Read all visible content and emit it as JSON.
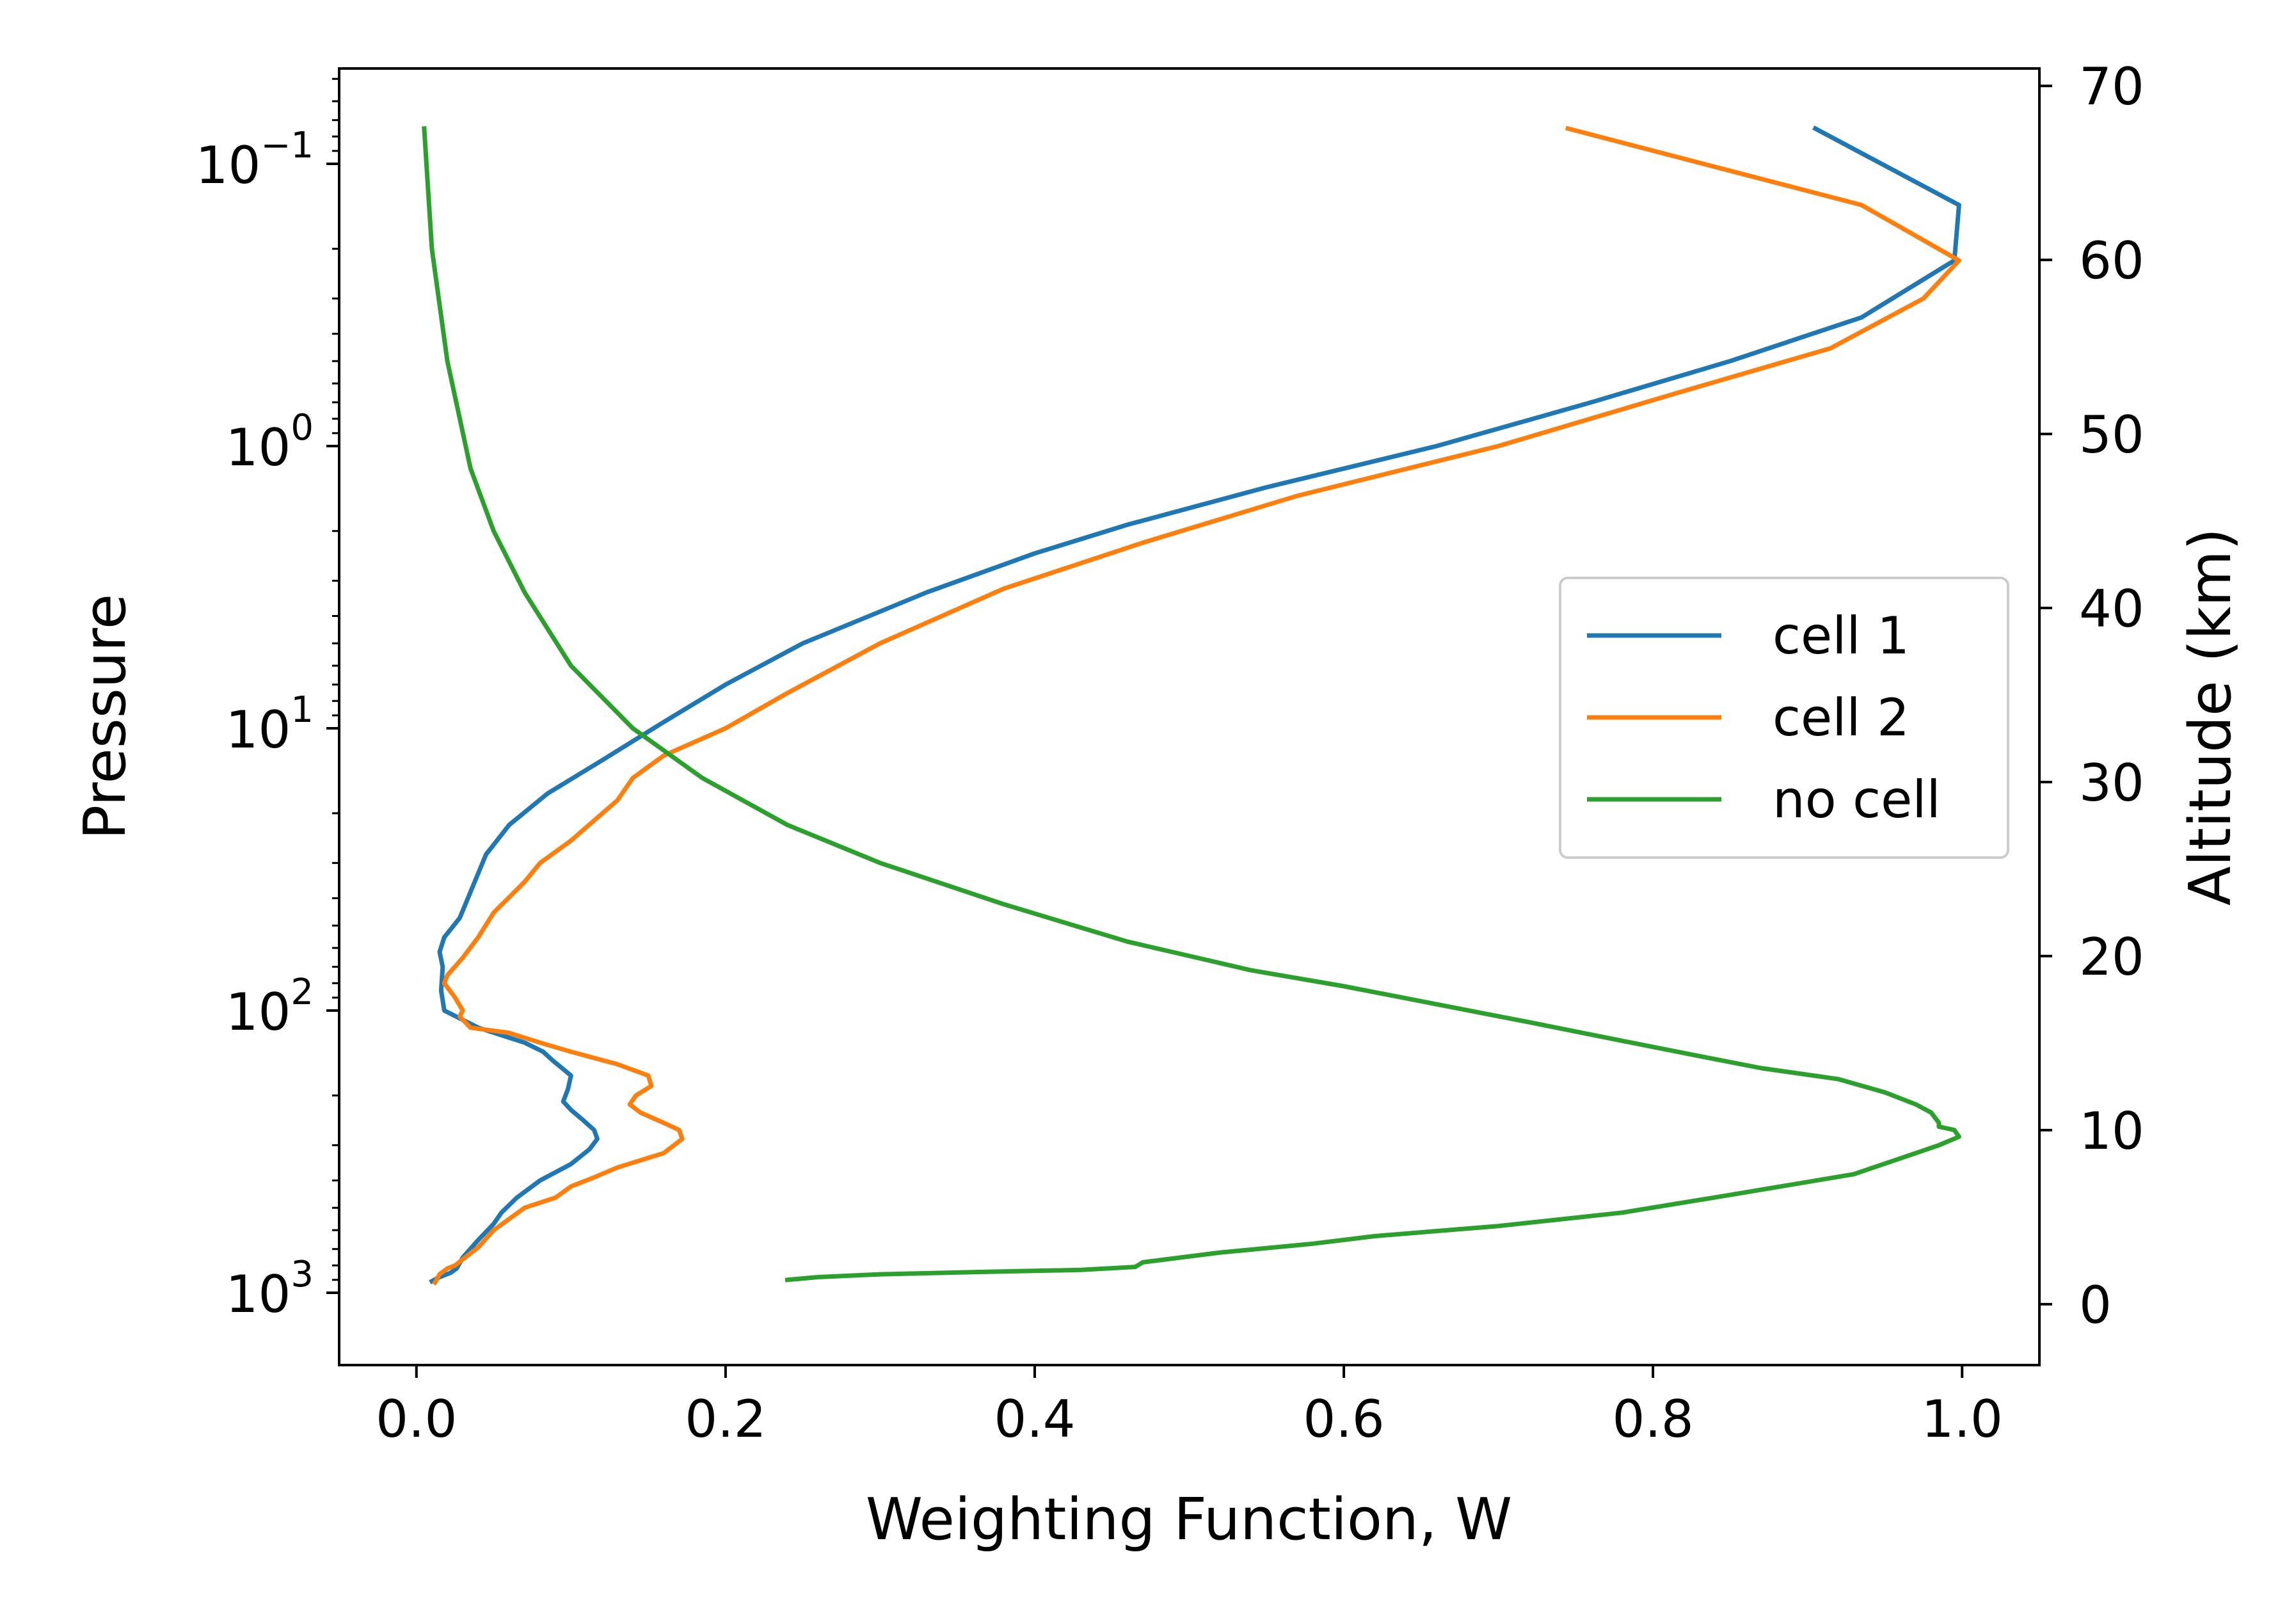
{
  "chart_data": {
    "type": "line",
    "xlabel": "Weighting Function, W",
    "ylabel_left": "Pressure",
    "ylabel_right": "Altitude (km)",
    "xlim": [
      -0.05,
      1.05
    ],
    "xticks": [
      {
        "value": 0.0,
        "label": "0.0"
      },
      {
        "value": 0.2,
        "label": "0.2"
      },
      {
        "value": 0.4,
        "label": "0.4"
      },
      {
        "value": 0.6,
        "label": "0.6"
      },
      {
        "value": 0.8,
        "label": "0.8"
      },
      {
        "value": 1.0,
        "label": "1.0"
      }
    ],
    "y_left_scale": "log",
    "y_left_inverted": true,
    "y_left_ticks": [
      {
        "value": 0.1,
        "base": "10",
        "exp": "−1"
      },
      {
        "value": 1,
        "base": "10",
        "exp": "0"
      },
      {
        "value": 10,
        "base": "10",
        "exp": "1"
      },
      {
        "value": 100,
        "base": "10",
        "exp": "2"
      },
      {
        "value": 1000,
        "base": "10",
        "exp": "3"
      }
    ],
    "y_right_lim": [
      -3.5,
      71
    ],
    "y_right_ticks": [
      {
        "value": 0,
        "label": "0"
      },
      {
        "value": 10,
        "label": "10"
      },
      {
        "value": 20,
        "label": "20"
      },
      {
        "value": 30,
        "label": "30"
      },
      {
        "value": 40,
        "label": "40"
      },
      {
        "value": 50,
        "label": "50"
      },
      {
        "value": 60,
        "label": "60"
      },
      {
        "value": 70,
        "label": "70"
      }
    ],
    "grid": false,
    "legend_position": "center-right",
    "series": [
      {
        "name": "cell 1",
        "color": "#1f77b4",
        "points": [
          [
            0.905,
            0.075
          ],
          [
            0.998,
            0.14
          ],
          [
            0.995,
            0.22
          ],
          [
            0.935,
            0.35
          ],
          [
            0.85,
            0.5
          ],
          [
            0.76,
            0.7
          ],
          [
            0.66,
            1.0
          ],
          [
            0.55,
            1.4
          ],
          [
            0.46,
            1.9
          ],
          [
            0.4,
            2.4
          ],
          [
            0.33,
            3.3
          ],
          [
            0.25,
            5.0
          ],
          [
            0.2,
            7.0
          ],
          [
            0.16,
            9.5
          ],
          [
            0.12,
            13.0
          ],
          [
            0.085,
            17.0
          ],
          [
            0.06,
            22.0
          ],
          [
            0.045,
            28.0
          ],
          [
            0.035,
            38.0
          ],
          [
            0.028,
            47.0
          ],
          [
            0.018,
            55.0
          ],
          [
            0.015,
            62.0
          ],
          [
            0.017,
            70.0
          ],
          [
            0.016,
            85.0
          ],
          [
            0.018,
            100.0
          ],
          [
            0.04,
            115.0
          ],
          [
            0.07,
            130.0
          ],
          [
            0.082,
            140.0
          ],
          [
            0.088,
            150.0
          ],
          [
            0.1,
            170.0
          ],
          [
            0.098,
            190.0
          ],
          [
            0.095,
            210.0
          ],
          [
            0.1,
            225.0
          ],
          [
            0.108,
            245.0
          ],
          [
            0.115,
            265.0
          ],
          [
            0.117,
            285.0
          ],
          [
            0.112,
            310.0
          ],
          [
            0.1,
            350.0
          ],
          [
            0.08,
            400.0
          ],
          [
            0.065,
            460.0
          ],
          [
            0.055,
            520.0
          ],
          [
            0.05,
            570.0
          ],
          [
            0.04,
            650.0
          ],
          [
            0.03,
            750.0
          ],
          [
            0.026,
            820.0
          ],
          [
            0.022,
            850.0
          ],
          [
            0.015,
            880.0
          ],
          [
            0.01,
            910.0
          ]
        ]
      },
      {
        "name": "cell 2",
        "color": "#ff7f0e",
        "points": [
          [
            0.745,
            0.075
          ],
          [
            0.935,
            0.14
          ],
          [
            0.998,
            0.22
          ],
          [
            0.975,
            0.3
          ],
          [
            0.915,
            0.45
          ],
          [
            0.815,
            0.65
          ],
          [
            0.7,
            1.0
          ],
          [
            0.57,
            1.5
          ],
          [
            0.47,
            2.2
          ],
          [
            0.38,
            3.2
          ],
          [
            0.3,
            5.0
          ],
          [
            0.24,
            7.5
          ],
          [
            0.2,
            10.0
          ],
          [
            0.16,
            12.5
          ],
          [
            0.14,
            15.0
          ],
          [
            0.13,
            18.0
          ],
          [
            0.1,
            25.0
          ],
          [
            0.08,
            30.0
          ],
          [
            0.07,
            35.0
          ],
          [
            0.05,
            45.0
          ],
          [
            0.04,
            55.0
          ],
          [
            0.03,
            65.0
          ],
          [
            0.02,
            75.0
          ],
          [
            0.018,
            80.0
          ],
          [
            0.025,
            90.0
          ],
          [
            0.03,
            100.0
          ],
          [
            0.028,
            105.0
          ],
          [
            0.035,
            115.0
          ],
          [
            0.06,
            120.0
          ],
          [
            0.08,
            130.0
          ],
          [
            0.1,
            140.0
          ],
          [
            0.13,
            155.0
          ],
          [
            0.15,
            170.0
          ],
          [
            0.152,
            185.0
          ],
          [
            0.142,
            200.0
          ],
          [
            0.138,
            215.0
          ],
          [
            0.145,
            230.0
          ],
          [
            0.16,
            250.0
          ],
          [
            0.17,
            265.0
          ],
          [
            0.172,
            285.0
          ],
          [
            0.16,
            320.0
          ],
          [
            0.13,
            360.0
          ],
          [
            0.115,
            390.0
          ],
          [
            0.1,
            420.0
          ],
          [
            0.09,
            460.0
          ],
          [
            0.07,
            500.0
          ],
          [
            0.05,
            600.0
          ],
          [
            0.04,
            690.0
          ],
          [
            0.025,
            800.0
          ],
          [
            0.02,
            820.0
          ],
          [
            0.015,
            860.0
          ],
          [
            0.012,
            920.0
          ]
        ]
      },
      {
        "name": "no cell",
        "color": "#2ca02c",
        "points": [
          [
            0.005,
            0.075
          ],
          [
            0.01,
            0.2
          ],
          [
            0.02,
            0.5
          ],
          [
            0.035,
            1.2
          ],
          [
            0.05,
            2.0
          ],
          [
            0.07,
            3.3
          ],
          [
            0.1,
            6.0
          ],
          [
            0.14,
            10.0
          ],
          [
            0.185,
            15.0
          ],
          [
            0.24,
            22.0
          ],
          [
            0.3,
            30.0
          ],
          [
            0.38,
            42.0
          ],
          [
            0.46,
            57.0
          ],
          [
            0.54,
            72.0
          ],
          [
            0.6,
            82.0
          ],
          [
            0.66,
            95.0
          ],
          [
            0.72,
            110.0
          ],
          [
            0.78,
            128.0
          ],
          [
            0.83,
            145.0
          ],
          [
            0.87,
            160.0
          ],
          [
            0.92,
            175.0
          ],
          [
            0.95,
            195.0
          ],
          [
            0.97,
            215.0
          ],
          [
            0.98,
            230.0
          ],
          [
            0.985,
            250.0
          ],
          [
            0.985,
            258.0
          ],
          [
            0.995,
            265.0
          ],
          [
            0.998,
            280.0
          ],
          [
            0.985,
            300.0
          ],
          [
            0.97,
            320.0
          ],
          [
            0.93,
            380.0
          ],
          [
            0.85,
            450.0
          ],
          [
            0.78,
            520.0
          ],
          [
            0.7,
            580.0
          ],
          [
            0.62,
            630.0
          ],
          [
            0.58,
            670.0
          ],
          [
            0.52,
            720.0
          ],
          [
            0.47,
            780.0
          ],
          [
            0.465,
            810.0
          ],
          [
            0.43,
            830.0
          ],
          [
            0.36,
            845.0
          ],
          [
            0.3,
            860.0
          ],
          [
            0.26,
            880.0
          ],
          [
            0.24,
            900.0
          ]
        ]
      }
    ]
  }
}
